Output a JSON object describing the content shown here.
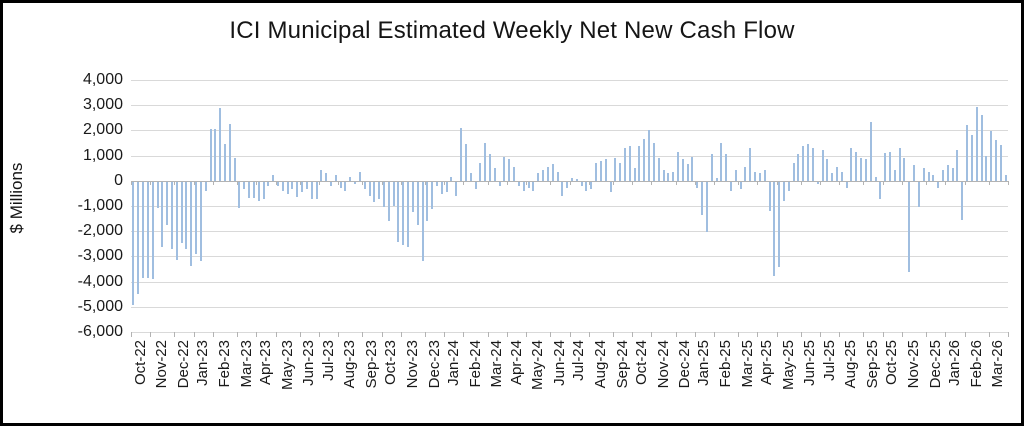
{
  "chart_data": {
    "type": "bar",
    "title": "ICI Municipal Estimated Weekly Net New Cash Flow",
    "xlabel": "",
    "ylabel": "$ Millions",
    "ylim": [
      -6000,
      4000
    ],
    "y_ticks": [
      4000,
      3000,
      2000,
      1000,
      0,
      -1000,
      -2000,
      -3000,
      -4000,
      -5000,
      -6000
    ],
    "y_tick_labels": [
      "4,000",
      "3,000",
      "2,000",
      "1,000",
      "0",
      "-1,000",
      "-2,000",
      "-3,000",
      "-4,000",
      "-5,000",
      "-6,000"
    ],
    "grid": "horizontal",
    "legend": "none",
    "bar_color": "#a0bee0",
    "categories": [
      "Oct-22",
      "Nov-22",
      "Dec-22",
      "Jan-23",
      "Feb-23",
      "Mar-23",
      "Apr-23",
      "May-23",
      "Jun-23",
      "Jul-23",
      "Aug-23",
      "Sep-23",
      "Oct-23",
      "Nov-23",
      "Dec-23",
      "Jan-24",
      "Feb-24",
      "Mar-24",
      "Apr-24",
      "May-24",
      "Jun-24",
      "Jul-24",
      "Aug-24",
      "Sep-24",
      "Oct-24",
      "Nov-24",
      "Dec-24",
      "Jan-25",
      "Feb-25",
      "Mar-25",
      "Apr-25",
      "May-25",
      "Jun-25",
      "Jul-25",
      "Aug-25",
      "Sep-25",
      "Oct-25",
      "Nov-25",
      "Dec-25",
      "Jan-26",
      "Feb-26",
      "Mar-26"
    ],
    "series": [
      {
        "name": "Estimated Weekly Net New Cash Flow ($ Millions)",
        "values_by_month": [
          [
            -4900,
            -4450,
            -3800,
            -3800
          ],
          [
            -3850,
            -1050,
            -2600,
            -1700,
            -2650
          ],
          [
            -3100,
            -2450,
            -2650,
            -3350
          ],
          [
            -2850,
            -3150,
            -350,
            2050
          ],
          [
            2050,
            2900,
            1450,
            2250,
            900
          ],
          [
            -1050,
            -300,
            -650,
            -650
          ],
          [
            -750,
            -700,
            -150,
            250
          ],
          [
            -150,
            -350,
            -500,
            -300,
            -600
          ],
          [
            -400,
            -300,
            -700,
            -700
          ],
          [
            450,
            300,
            -150,
            250
          ],
          [
            -250,
            -350,
            150,
            -100,
            350
          ],
          [
            -300,
            -550,
            -800,
            -700
          ],
          [
            -1000,
            -1550,
            -950,
            -2400
          ],
          [
            -2500,
            -2600,
            -1200,
            -1700,
            -3150
          ],
          [
            -1550,
            -1100,
            -150,
            -500
          ],
          [
            -400,
            150,
            -550,
            2100
          ],
          [
            1450,
            300,
            -300,
            700,
            1500
          ],
          [
            1050,
            500,
            -150,
            950
          ],
          [
            850,
            550,
            -150,
            -350
          ],
          [
            -250,
            -350,
            300,
            450,
            550
          ],
          [
            650,
            370,
            -550,
            -250
          ],
          [
            100,
            80,
            -150,
            -350
          ],
          [
            -300,
            700,
            780,
            850,
            -400
          ],
          [
            900,
            700,
            1300,
            1400
          ],
          [
            500,
            1370,
            1650,
            2000
          ],
          [
            1500,
            900,
            450,
            300,
            370
          ],
          [
            1150,
            850,
            650,
            950
          ],
          [
            -250,
            -1300,
            -2000,
            1050
          ],
          [
            100,
            1500,
            1050,
            -350,
            450
          ],
          [
            -300,
            550,
            1300,
            350
          ],
          [
            300,
            450,
            -1150,
            -3750
          ],
          [
            -3400,
            -750,
            -350,
            700,
            1050
          ],
          [
            1370,
            1450,
            1300,
            -100
          ],
          [
            1230,
            850,
            300,
            550
          ],
          [
            370,
            -250,
            1300,
            1150,
            900
          ],
          [
            850,
            2350,
            150,
            -700
          ],
          [
            1100,
            1150,
            450,
            1300
          ],
          [
            900,
            -3600,
            640,
            -1000,
            500
          ],
          [
            370,
            240,
            -230,
            440
          ],
          [
            640,
            500,
            1230,
            -1500
          ],
          [
            2230,
            1830,
            2950,
            2620,
            970
          ],
          [
            1960,
            1630,
            1430,
            250
          ]
        ]
      }
    ]
  }
}
